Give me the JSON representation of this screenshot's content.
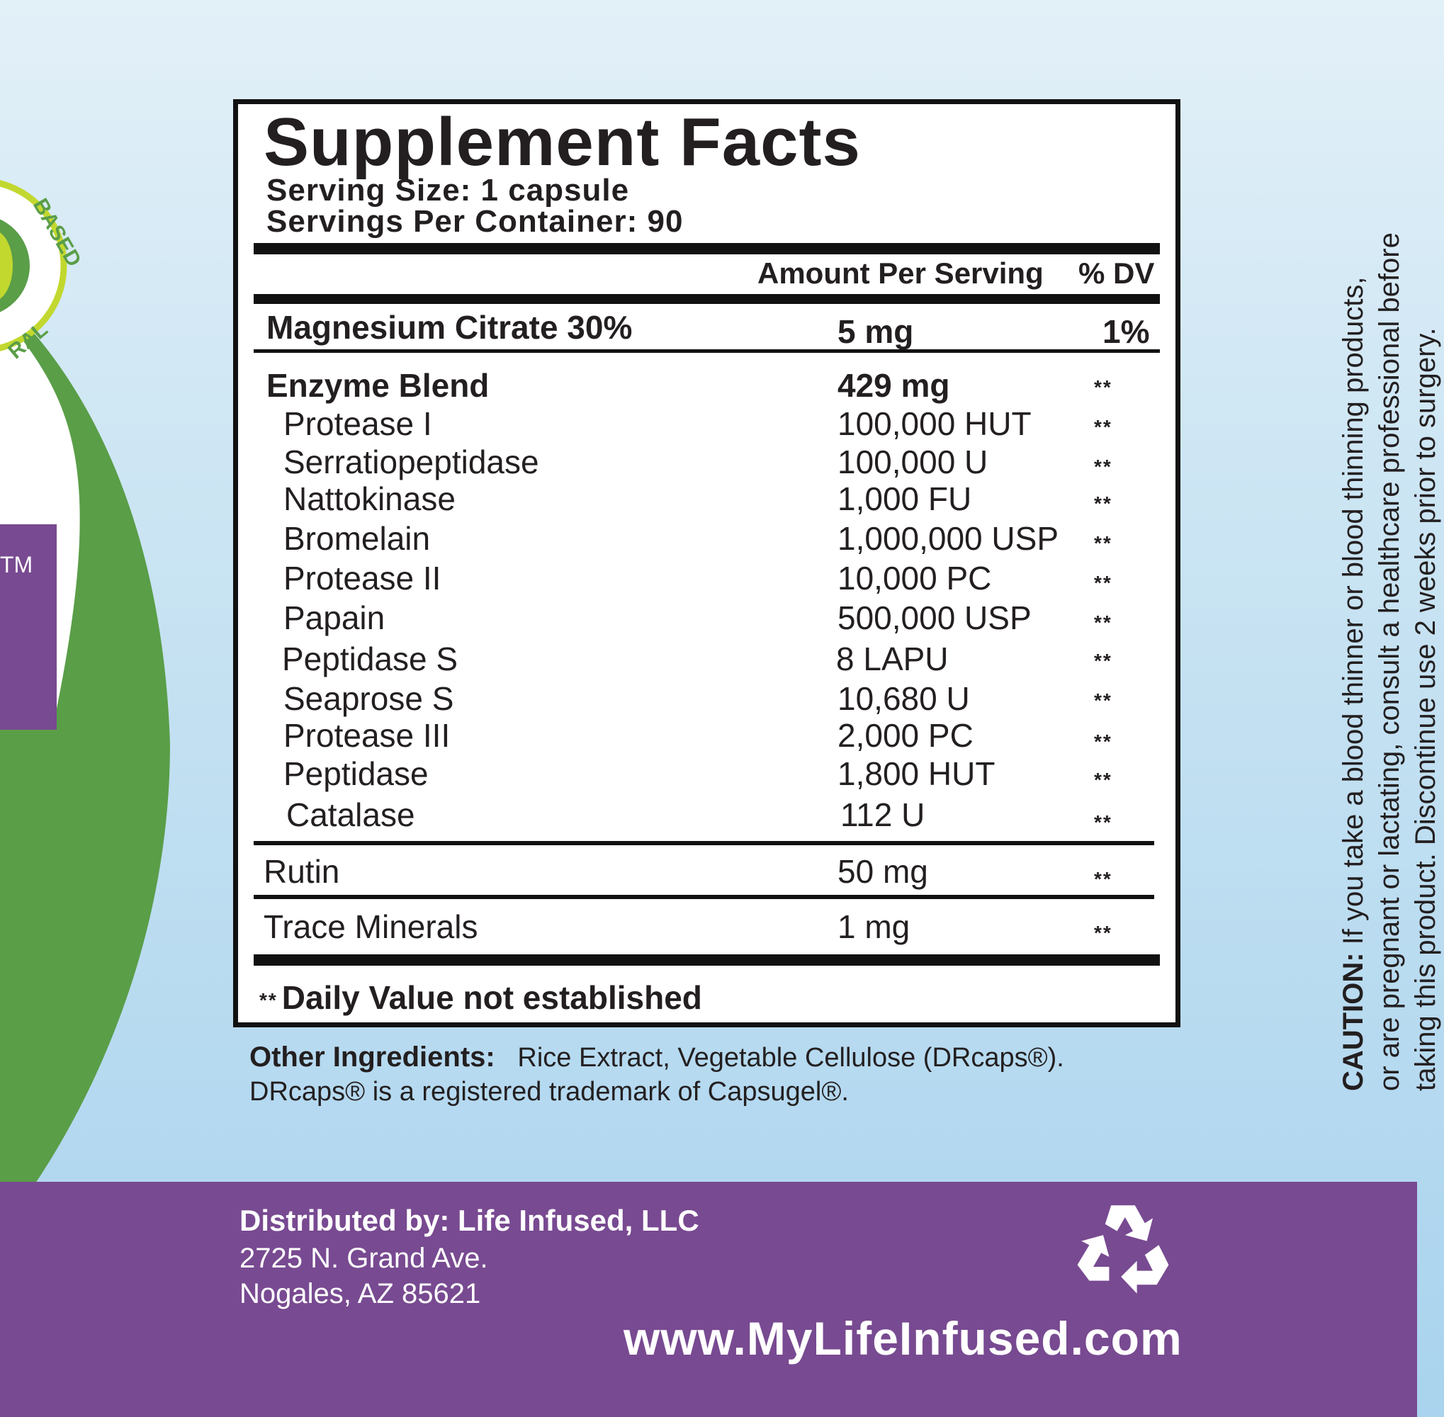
{
  "badge": {
    "partial_text_1": "BASED",
    "partial_text_2": "RAL"
  },
  "side_panel": {
    "trademark": "TM"
  },
  "facts": {
    "title": "Supplement Facts",
    "serving_size": "Serving Size: 1 capsule",
    "servings_per_container": "Servings Per Container: 90",
    "header_amount": "Amount Per Serving",
    "header_dv": "% DV",
    "magnesium": {
      "name": "Magnesium Citrate 30%",
      "amount": "5 mg",
      "dv": "1%"
    },
    "blend": {
      "name": "Enzyme Blend",
      "amount": "429 mg",
      "dv": "**"
    },
    "enzymes": [
      {
        "name": "Protease I",
        "amount": "100,000 HUT",
        "dv": "**"
      },
      {
        "name": "Serratiopeptidase",
        "amount": "100,000 U",
        "dv": "**"
      },
      {
        "name": "Nattokinase",
        "amount": "1,000 FU",
        "dv": "**"
      },
      {
        "name": "Bromelain",
        "amount": "1,000,000 USP",
        "dv": "**"
      },
      {
        "name": "Protease II",
        "amount": "10,000 PC",
        "dv": "**"
      },
      {
        "name": "Papain",
        "amount": "500,000 USP",
        "dv": "**"
      },
      {
        "name": "Peptidase S",
        "amount": "8 LAPU",
        "dv": "**"
      },
      {
        "name": "Seaprose S",
        "amount": "10,680 U",
        "dv": "**"
      },
      {
        "name": "Protease III",
        "amount": "2,000 PC",
        "dv": "**"
      },
      {
        "name": "Peptidase",
        "amount": "1,800 HUT",
        "dv": "**"
      },
      {
        "name": "Catalase",
        "amount": "112 U",
        "dv": "**"
      }
    ],
    "rutin": {
      "name": "Rutin",
      "amount": "50 mg",
      "dv": "**"
    },
    "trace": {
      "name": "Trace Minerals",
      "amount": "1 mg",
      "dv": "**"
    },
    "footnote_stars": "**",
    "footnote_text": "Daily Value not established"
  },
  "other_ingredients": {
    "label": "Other Ingredients:",
    "text": "Rice Extract, Vegetable Cellulose (DRcaps®).",
    "line2": "DRcaps® is a registered trademark of Capsugel®."
  },
  "caution": {
    "label": "CAUTION:",
    "line1": "If you take a blood thinner or blood thinning products,",
    "line2": "or are pregnant or lactating, consult a healthcare professional before",
    "line3": "taking this product. Discontinue use 2 weeks prior to surgery."
  },
  "footer": {
    "distributed_by": "Distributed by: Life Infused, LLC",
    "address1": "2725 N. Grand Ave.",
    "address2": "Nogales, AZ 85621",
    "website": "www.MyLifeInfused.com"
  },
  "colors": {
    "purple": "#784a91",
    "green": "#5a9e48",
    "lime": "#c2d82f",
    "black": "#111111",
    "white": "#ffffff"
  },
  "icons": {
    "recycle": "recycle-icon"
  }
}
